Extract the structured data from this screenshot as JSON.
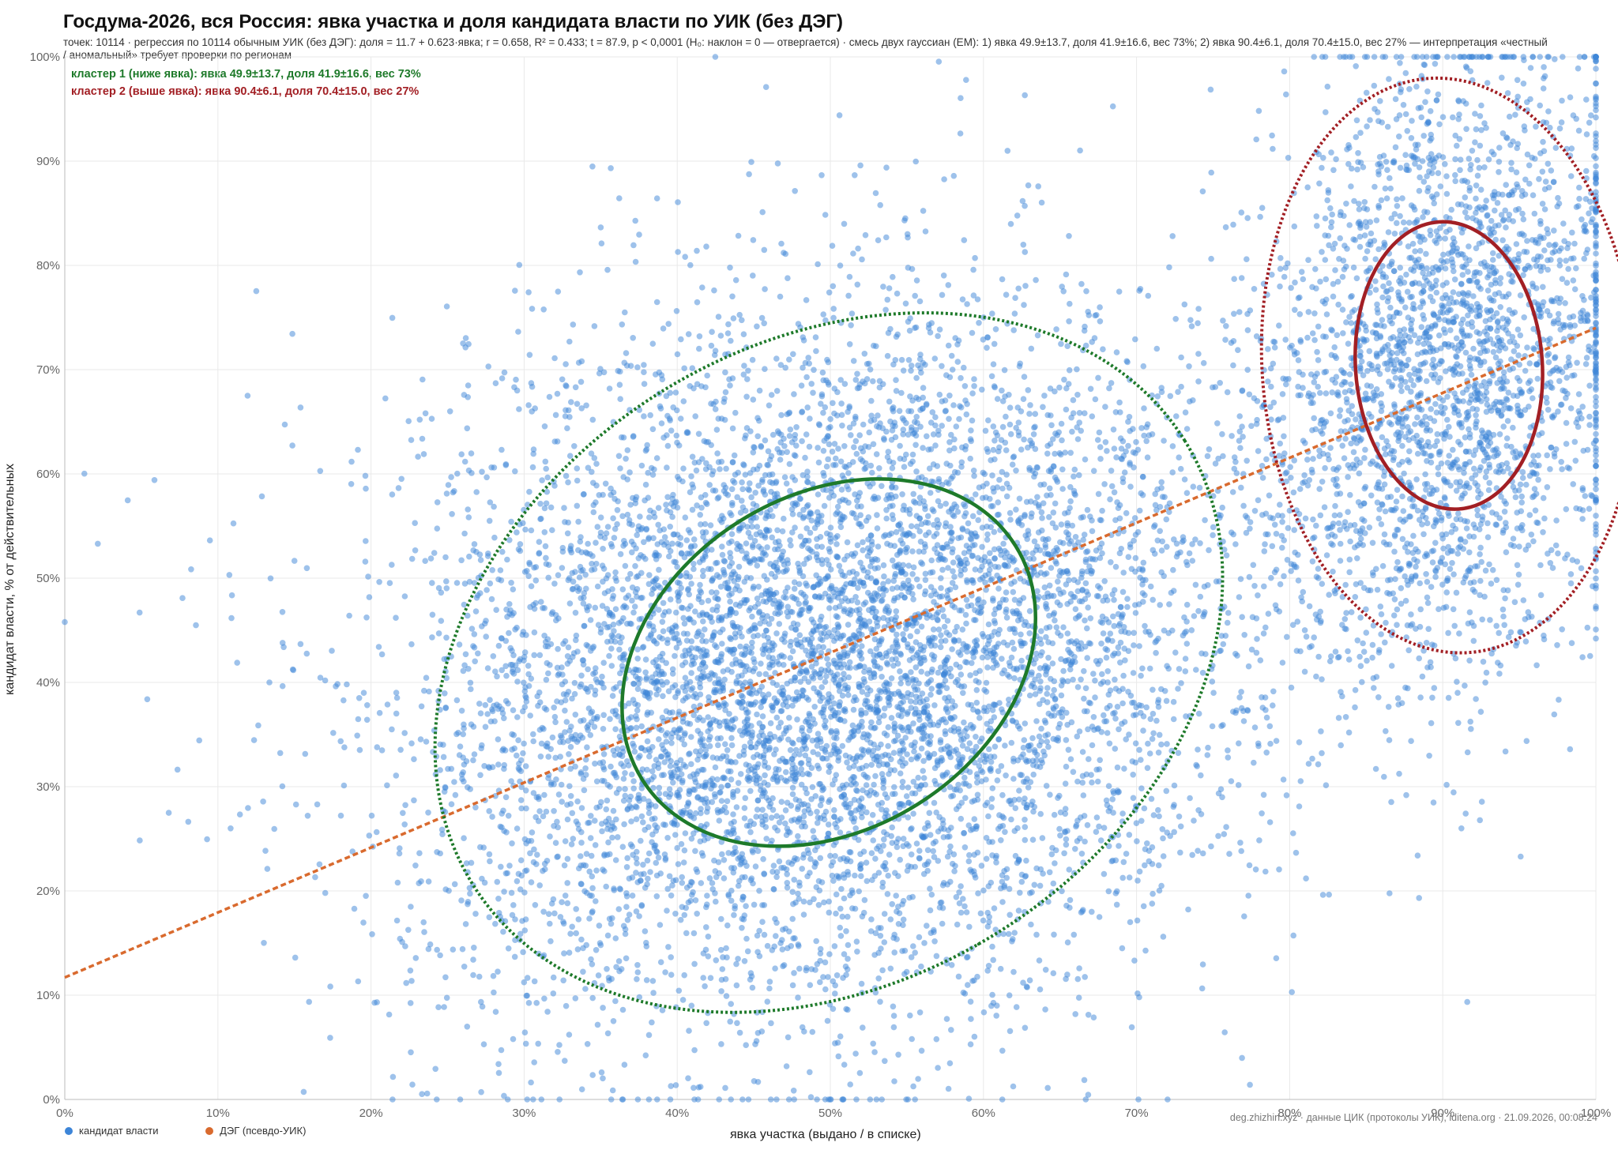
{
  "title": "Госдума-2026, вся Россия: явка участка и доля кандидата власти по УИК (без ДЭГ)",
  "subtitle": "точек: 10114 · регрессия по 10114 обычным УИК (без ДЭГ): доля = 11.7 + 0.623·явка; r = 0.658, R² = 0.433; t = 87.9, p < 0,0001 (H₀: наклон = 0 — отвергается) · смесь двух гауссиан (EM): 1) явка 49.9±13.7, доля 41.9±16.6, вес 73%; 2) явка 90.4±6.1, доля 70.4±15.0, вес 27% — интерпретация «честный / аномальный» требует проверки по регионам",
  "clusters": [
    {
      "label": "кластер 1 (ниже явка): явка 49.9±13.7, доля 41.9±16.6, вес 73%",
      "color": "#1e7a2a"
    },
    {
      "label": "кластер 2 (выше явка): явка 90.4±6.1, доля 70.4±15.0, вес 27%",
      "color": "#a21f24"
    }
  ],
  "legend": [
    {
      "label": "кандидат власти",
      "color": "#3d85d8"
    },
    {
      "label": "ДЭГ (псевдо-УИК)",
      "color": "#d96a2e"
    }
  ],
  "credit": "deg.zhizhin.xyz · данные ЦИК (протоколы УИК), iditena.org · 21.09.2026, 00:08:24",
  "chart_data": {
    "type": "scatter",
    "title": "Госдума-2026, вся Россия: явка участка и доля кандидата власти по УИК (без ДЭГ)",
    "xlabel": "явка участка (выдано / в списке)",
    "ylabel": "кандидат власти, % от действительных",
    "xlim": [
      0,
      100
    ],
    "ylim": [
      0,
      100
    ],
    "x_ticks": [
      "0%",
      "10%",
      "20%",
      "30%",
      "40%",
      "50%",
      "60%",
      "70%",
      "80%",
      "90%",
      "100%"
    ],
    "y_ticks": [
      "0%",
      "10%",
      "20%",
      "30%",
      "40%",
      "50%",
      "60%",
      "70%",
      "80%",
      "90%",
      "100%"
    ],
    "grid": true,
    "legend_position": "bottom-left",
    "n_points": 10114,
    "series": [
      {
        "name": "кандидат власти",
        "color": "#3d85d8",
        "components": [
          {
            "mean_x": 49.9,
            "sd_x": 13.7,
            "mean_y": 41.9,
            "sd_y": 16.6,
            "weight": 0.73
          },
          {
            "mean_x": 90.4,
            "sd_x": 6.1,
            "mean_y": 70.4,
            "sd_y": 15.0,
            "weight": 0.27
          }
        ]
      },
      {
        "name": "ДЭГ (псевдо-УИК)",
        "color": "#d96a2e"
      }
    ],
    "regression": {
      "intercept": 11.7,
      "slope": 0.623,
      "color": "#d96a2e"
    },
    "ellipses": [
      {
        "cluster": 1,
        "color": "#1e7a2a",
        "center_x": 49.9,
        "center_y": 41.9,
        "inner": "solid",
        "outer": "dotted"
      },
      {
        "cluster": 2,
        "color": "#a21f24",
        "center_x": 90.4,
        "center_y": 70.4,
        "inner": "solid",
        "outer": "dotted"
      }
    ]
  }
}
